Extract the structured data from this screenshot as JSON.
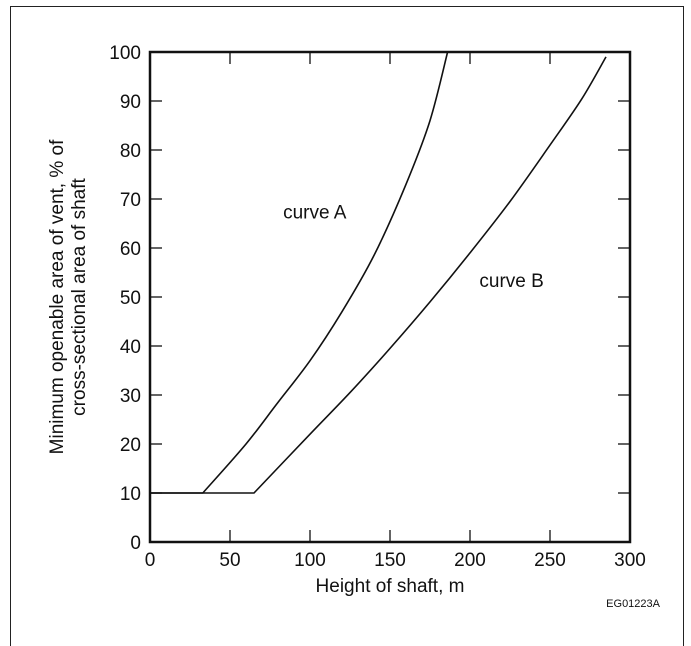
{
  "chart_data": {
    "type": "line",
    "xlabel": "Height of shaft, m",
    "ylabel_lines": [
      "Minimum openable area of vent, % of",
      "cross-sectional area of shaft"
    ],
    "xlim": [
      0,
      300
    ],
    "ylim": [
      0,
      100
    ],
    "x_ticks": [
      0,
      50,
      100,
      150,
      200,
      250,
      300
    ],
    "y_ticks": [
      0,
      10,
      20,
      30,
      40,
      50,
      60,
      70,
      80,
      90,
      100
    ],
    "grid": false,
    "series": [
      {
        "name": "curve A",
        "x": [
          0,
          33,
          60,
          80,
          100,
          120,
          140,
          160,
          175,
          186
        ],
        "y": [
          10,
          10,
          20,
          28.5,
          37,
          47,
          58.5,
          73,
          86,
          100
        ]
      },
      {
        "name": "curve B",
        "x": [
          0,
          65,
          100,
          125,
          150,
          175,
          200,
          225,
          250,
          270,
          285
        ],
        "y": [
          10,
          10,
          22,
          30.5,
          39.5,
          49,
          59,
          69.5,
          81,
          90.5,
          99
        ]
      }
    ],
    "annotations": [
      {
        "text": "curve A",
        "x": 103,
        "y": 66
      },
      {
        "text": "curve B",
        "x": 226,
        "y": 52
      }
    ]
  },
  "figure_code": "EG01223A"
}
